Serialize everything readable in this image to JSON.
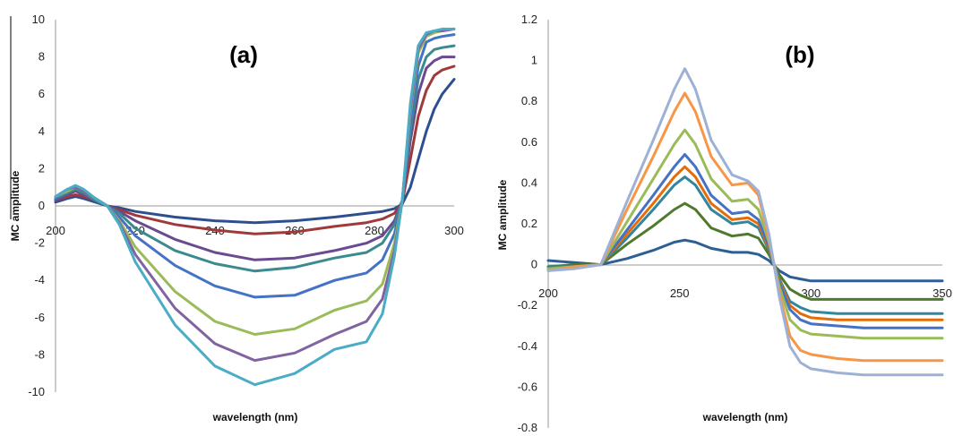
{
  "chart_data": [
    {
      "type": "line",
      "panel_label": "(a)",
      "xlabel": "wavelength (nm)",
      "ylabel": "MC amplitude",
      "xlim": [
        200,
        300
      ],
      "ylim": [
        -10,
        10
      ],
      "xticks": [
        200,
        220,
        240,
        260,
        280,
        300
      ],
      "yticks": [
        -10,
        -8,
        -6,
        -4,
        -2,
        0,
        2,
        4,
        6,
        8,
        10
      ],
      "grid": false,
      "series": [
        {
          "color": "#2E4F8F",
          "x": [
            200,
            203,
            205,
            207,
            210,
            213,
            216,
            220,
            230,
            240,
            250,
            260,
            270,
            278,
            282,
            285,
            287,
            289,
            291,
            293,
            295,
            297,
            300
          ],
          "y": [
            0.2,
            0.4,
            0.5,
            0.4,
            0.2,
            0.0,
            -0.1,
            -0.3,
            -0.6,
            -0.8,
            -0.9,
            -0.8,
            -0.6,
            -0.4,
            -0.3,
            -0.15,
            0.1,
            1.0,
            2.5,
            4.0,
            5.2,
            6.0,
            6.8
          ]
        },
        {
          "color": "#A03A3A",
          "x": [
            200,
            203,
            205,
            207,
            210,
            213,
            216,
            220,
            230,
            240,
            250,
            260,
            270,
            278,
            282,
            285,
            287,
            289,
            291,
            293,
            295,
            297,
            300
          ],
          "y": [
            0.3,
            0.5,
            0.6,
            0.5,
            0.3,
            0.0,
            -0.2,
            -0.5,
            -1.0,
            -1.3,
            -1.5,
            -1.4,
            -1.1,
            -0.9,
            -0.7,
            -0.4,
            0.2,
            2.5,
            4.8,
            6.2,
            7.0,
            7.3,
            7.5
          ]
        },
        {
          "color": "#6A4A90",
          "x": [
            200,
            203,
            205,
            207,
            210,
            213,
            216,
            220,
            230,
            240,
            250,
            260,
            270,
            278,
            282,
            285,
            287,
            289,
            291,
            293,
            295,
            297,
            300
          ],
          "y": [
            0.3,
            0.6,
            0.8,
            0.6,
            0.3,
            0.0,
            -0.3,
            -0.8,
            -1.8,
            -2.5,
            -2.9,
            -2.8,
            -2.4,
            -2.0,
            -1.6,
            -0.8,
            0.3,
            3.5,
            6.0,
            7.4,
            7.8,
            8.0,
            8.0
          ]
        },
        {
          "color": "#3A8A8E",
          "x": [
            200,
            203,
            205,
            207,
            210,
            213,
            216,
            220,
            230,
            240,
            250,
            260,
            270,
            278,
            282,
            285,
            287,
            289,
            291,
            293,
            295,
            297,
            300
          ],
          "y": [
            0.4,
            0.7,
            0.9,
            0.7,
            0.3,
            0.0,
            -0.4,
            -1.2,
            -2.4,
            -3.1,
            -3.5,
            -3.3,
            -2.8,
            -2.5,
            -2.0,
            -1.0,
            0.3,
            4.0,
            6.8,
            8.0,
            8.4,
            8.5,
            8.6
          ]
        },
        {
          "color": "#4472C4",
          "x": [
            200,
            203,
            205,
            207,
            210,
            213,
            216,
            220,
            230,
            240,
            250,
            260,
            270,
            278,
            282,
            285,
            287,
            289,
            291,
            293,
            295,
            297,
            300
          ],
          "y": [
            0.4,
            0.8,
            1.0,
            0.8,
            0.4,
            0.0,
            -0.6,
            -1.6,
            -3.2,
            -4.3,
            -4.9,
            -4.8,
            -4.0,
            -3.6,
            -2.9,
            -1.5,
            0.3,
            4.5,
            7.5,
            8.8,
            9.0,
            9.1,
            9.2
          ]
        },
        {
          "color": "#9BBB59",
          "x": [
            200,
            203,
            205,
            207,
            210,
            213,
            216,
            220,
            230,
            240,
            250,
            260,
            270,
            278,
            282,
            285,
            287,
            289,
            291,
            293,
            295,
            297,
            300
          ],
          "y": [
            0.5,
            0.8,
            1.0,
            0.8,
            0.4,
            0.0,
            -0.8,
            -2.2,
            -4.6,
            -6.2,
            -6.9,
            -6.6,
            -5.6,
            -5.1,
            -4.2,
            -2.0,
            0.3,
            5.0,
            8.2,
            9.1,
            9.3,
            9.4,
            9.5
          ]
        },
        {
          "color": "#8064A2",
          "x": [
            200,
            203,
            205,
            207,
            210,
            213,
            216,
            220,
            230,
            240,
            250,
            260,
            270,
            278,
            282,
            285,
            287,
            289,
            291,
            293,
            295,
            297,
            300
          ],
          "y": [
            0.5,
            0.9,
            1.0,
            0.8,
            0.4,
            0.0,
            -0.9,
            -2.6,
            -5.5,
            -7.4,
            -8.3,
            -7.9,
            -6.9,
            -6.2,
            -5.0,
            -2.4,
            0.3,
            5.2,
            8.4,
            9.2,
            9.4,
            9.4,
            9.5
          ]
        },
        {
          "color": "#4BACC6",
          "x": [
            200,
            203,
            205,
            207,
            210,
            213,
            216,
            220,
            230,
            240,
            250,
            260,
            270,
            278,
            282,
            285,
            287,
            289,
            291,
            293,
            295,
            297,
            300
          ],
          "y": [
            0.5,
            0.9,
            1.1,
            0.9,
            0.4,
            0.0,
            -1.0,
            -3.0,
            -6.4,
            -8.6,
            -9.6,
            -9.0,
            -7.7,
            -7.3,
            -5.8,
            -2.7,
            0.3,
            5.5,
            8.6,
            9.3,
            9.4,
            9.5,
            9.5
          ]
        }
      ]
    },
    {
      "type": "line",
      "panel_label": "(b)",
      "xlabel": "wavelength (nm)",
      "ylabel": "MC amplitude",
      "xlim": [
        200,
        350
      ],
      "ylim": [
        -0.8,
        1.2
      ],
      "xticks": [
        200,
        250,
        300,
        350
      ],
      "yticks": [
        -0.8,
        -0.6,
        -0.4,
        -0.2,
        0,
        0.2,
        0.4,
        0.6,
        0.8,
        1,
        1.2
      ],
      "grid": false,
      "series": [
        {
          "color": "#2E5F94",
          "x": [
            200,
            210,
            220,
            230,
            240,
            248,
            252,
            256,
            262,
            270,
            276,
            280,
            284,
            288,
            292,
            296,
            300,
            310,
            320,
            330,
            340,
            350
          ],
          "y": [
            0.02,
            0.01,
            0.0,
            0.03,
            0.07,
            0.11,
            0.12,
            0.11,
            0.08,
            0.06,
            0.06,
            0.05,
            0.02,
            -0.03,
            -0.06,
            -0.07,
            -0.08,
            -0.08,
            -0.08,
            -0.08,
            -0.08,
            -0.08
          ]
        },
        {
          "color": "#4F7A2E",
          "x": [
            200,
            210,
            220,
            230,
            240,
            248,
            252,
            256,
            262,
            270,
            276,
            280,
            284,
            288,
            292,
            296,
            300,
            310,
            320,
            330,
            340,
            350
          ],
          "y": [
            -0.01,
            0.0,
            0.0,
            0.1,
            0.19,
            0.27,
            0.3,
            0.27,
            0.18,
            0.14,
            0.15,
            0.13,
            0.05,
            -0.05,
            -0.12,
            -0.15,
            -0.17,
            -0.17,
            -0.17,
            -0.17,
            -0.17,
            -0.17
          ]
        },
        {
          "color": "#31859C",
          "x": [
            200,
            210,
            220,
            230,
            240,
            248,
            252,
            256,
            262,
            270,
            276,
            280,
            284,
            288,
            292,
            296,
            300,
            310,
            320,
            330,
            340,
            350
          ],
          "y": [
            -0.01,
            -0.01,
            0.0,
            0.13,
            0.27,
            0.39,
            0.43,
            0.39,
            0.27,
            0.2,
            0.21,
            0.18,
            0.07,
            -0.07,
            -0.18,
            -0.21,
            -0.23,
            -0.24,
            -0.24,
            -0.24,
            -0.24,
            -0.24
          ]
        },
        {
          "color": "#E46C0A",
          "x": [
            200,
            210,
            220,
            230,
            240,
            248,
            252,
            256,
            262,
            270,
            276,
            280,
            284,
            288,
            292,
            296,
            300,
            310,
            320,
            330,
            340,
            350
          ],
          "y": [
            -0.02,
            -0.01,
            0.0,
            0.15,
            0.3,
            0.43,
            0.48,
            0.43,
            0.3,
            0.22,
            0.23,
            0.2,
            0.08,
            -0.08,
            -0.2,
            -0.24,
            -0.26,
            -0.27,
            -0.27,
            -0.27,
            -0.27,
            -0.27
          ]
        },
        {
          "color": "#4472C4",
          "x": [
            200,
            210,
            220,
            230,
            240,
            248,
            252,
            256,
            262,
            270,
            276,
            280,
            284,
            288,
            292,
            296,
            300,
            310,
            320,
            330,
            340,
            350
          ],
          "y": [
            -0.02,
            -0.01,
            0.0,
            0.17,
            0.34,
            0.48,
            0.54,
            0.48,
            0.34,
            0.25,
            0.26,
            0.22,
            0.09,
            -0.09,
            -0.22,
            -0.27,
            -0.29,
            -0.3,
            -0.31,
            -0.31,
            -0.31,
            -0.31
          ]
        },
        {
          "color": "#9BBB59",
          "x": [
            200,
            210,
            220,
            230,
            240,
            248,
            252,
            256,
            262,
            270,
            276,
            280,
            284,
            288,
            292,
            296,
            300,
            310,
            320,
            330,
            340,
            350
          ],
          "y": [
            -0.02,
            -0.01,
            0.0,
            0.21,
            0.42,
            0.59,
            0.66,
            0.59,
            0.42,
            0.31,
            0.32,
            0.27,
            0.11,
            -0.11,
            -0.27,
            -0.32,
            -0.34,
            -0.35,
            -0.36,
            -0.36,
            -0.36,
            -0.36
          ]
        },
        {
          "color": "#F79646",
          "x": [
            200,
            210,
            220,
            230,
            240,
            248,
            252,
            256,
            262,
            270,
            276,
            280,
            284,
            288,
            292,
            296,
            300,
            310,
            320,
            330,
            340,
            350
          ],
          "y": [
            -0.03,
            -0.01,
            0.0,
            0.27,
            0.53,
            0.75,
            0.84,
            0.75,
            0.53,
            0.39,
            0.4,
            0.34,
            0.13,
            -0.14,
            -0.35,
            -0.42,
            -0.44,
            -0.46,
            -0.47,
            -0.47,
            -0.47,
            -0.47
          ]
        },
        {
          "color": "#9DB1D4",
          "x": [
            200,
            210,
            220,
            230,
            240,
            248,
            252,
            256,
            262,
            270,
            276,
            280,
            284,
            288,
            292,
            296,
            300,
            310,
            320,
            330,
            340,
            350
          ],
          "y": [
            -0.03,
            -0.02,
            0.0,
            0.31,
            0.61,
            0.86,
            0.96,
            0.86,
            0.61,
            0.44,
            0.41,
            0.36,
            0.15,
            -0.16,
            -0.4,
            -0.48,
            -0.51,
            -0.53,
            -0.54,
            -0.54,
            -0.54,
            -0.54
          ]
        }
      ]
    }
  ]
}
